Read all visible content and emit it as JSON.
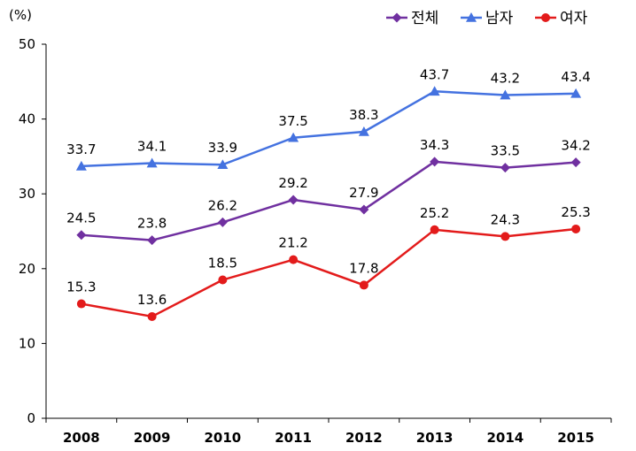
{
  "chart_data": {
    "type": "line",
    "title": "",
    "xlabel": "",
    "ylabel": "(%)",
    "ylim": [
      0,
      50
    ],
    "yticks": [
      0,
      10,
      20,
      30,
      40,
      50
    ],
    "grid": false,
    "legend_position": "top-right",
    "categories": [
      "2008",
      "2009",
      "2010",
      "2011",
      "2012",
      "2013",
      "2014",
      "2015"
    ],
    "series": [
      {
        "name": "전체",
        "color": "#7030a0",
        "marker": "diamond",
        "values": [
          24.5,
          23.8,
          26.2,
          29.2,
          27.9,
          34.3,
          33.5,
          34.2
        ],
        "labels": [
          "24.5",
          "23.8",
          "26.2",
          "29.2",
          "27.9",
          "34.3",
          "33.5",
          "34.2"
        ]
      },
      {
        "name": "남자",
        "color": "#4472e0",
        "marker": "triangle",
        "values": [
          33.7,
          34.1,
          33.9,
          37.5,
          38.3,
          43.7,
          43.2,
          43.4
        ],
        "labels": [
          "33.7",
          "34.1",
          "33.9",
          "37.5",
          "38.3",
          "43.7",
          "43.2",
          "43.4"
        ]
      },
      {
        "name": "여자",
        "color": "#e31b1b",
        "marker": "circle",
        "values": [
          15.3,
          13.6,
          18.5,
          21.2,
          17.8,
          25.2,
          24.3,
          25.3
        ],
        "labels": [
          "15.3",
          "13.6",
          "18.5",
          "21.2",
          "17.8",
          "25.2",
          "24.3",
          "25.3"
        ]
      }
    ]
  }
}
